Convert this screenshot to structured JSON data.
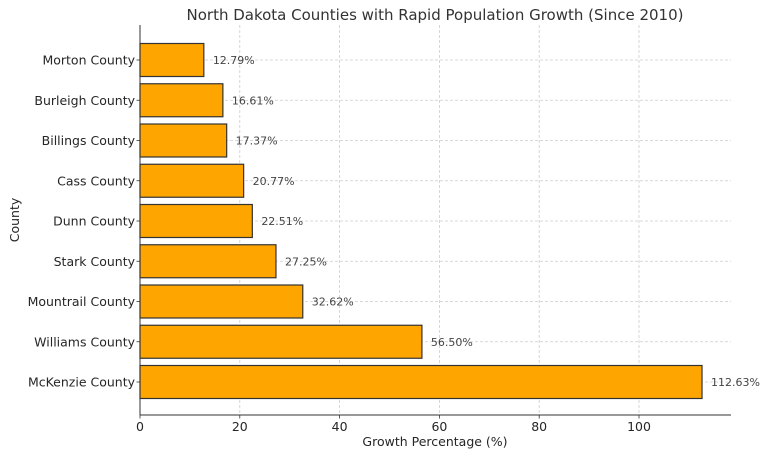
{
  "chart_data": {
    "type": "bar",
    "orientation": "horizontal",
    "title": "North Dakota Counties with Rapid Population Growth (Since 2010)",
    "xlabel": "Growth Percentage (%)",
    "ylabel": "County",
    "categories": [
      "Morton County",
      "Burleigh County",
      "Billings County",
      "Cass County",
      "Dunn County",
      "Stark County",
      "Mountrail County",
      "Williams County",
      "McKenzie County"
    ],
    "values": [
      12.79,
      16.61,
      17.37,
      20.77,
      22.51,
      27.25,
      32.62,
      56.5,
      112.63
    ],
    "value_labels": [
      "12.79%",
      "16.61%",
      "17.37%",
      "20.77%",
      "22.51%",
      "27.25%",
      "32.62%",
      "56.50%",
      "112.63%"
    ],
    "xlim": [
      0,
      118.3
    ],
    "xticks": [
      0,
      20,
      40,
      60,
      80,
      100
    ],
    "grid": true,
    "grid_style": "dashed",
    "legend": null,
    "colors": {
      "bar_fill": "#FFA500",
      "bar_edge": "#333333",
      "grid": "#cccccc",
      "axis": "#333333"
    }
  }
}
